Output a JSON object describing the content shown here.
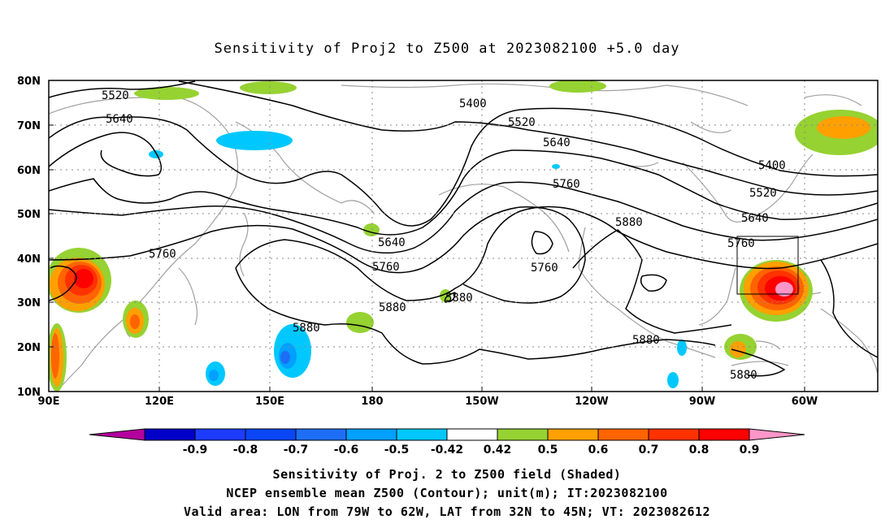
{
  "title": "Sensitivity of Proj2 to Z500 at 2023082100 +5.0 day",
  "lat_labels": [
    "80N",
    "70N",
    "60N",
    "50N",
    "40N",
    "30N",
    "20N",
    "10N"
  ],
  "lon_labels": [
    "90E",
    "120E",
    "150E",
    "180",
    "150W",
    "120W",
    "90W",
    "60W"
  ],
  "contour_labels": [
    "5520",
    "5640",
    "5400",
    "5520",
    "5640",
    "5760",
    "5880",
    "5400",
    "5520",
    "5640",
    "5760",
    "5640",
    "5760",
    "5760",
    "5880",
    "5880",
    "5880",
    "5880",
    "5760",
    "5880"
  ],
  "colorbar": {
    "labels": [
      "-0.9",
      "-0.8",
      "-0.7",
      "-0.6",
      "-0.5",
      "-0.42",
      "0.42",
      "0.5",
      "0.6",
      "0.7",
      "0.8",
      "0.9"
    ],
    "colors": [
      "#b4009e",
      "#0000c8",
      "#1e3cff",
      "#0a46f5",
      "#1e6ef5",
      "#00a0ff",
      "#00c8ff",
      "#ffffff",
      "#96d232",
      "#ffa000",
      "#ff6400",
      "#ff3200",
      "#ff0000",
      "#ff96c8"
    ]
  },
  "valid_box": {
    "lon_from": "79W",
    "lon_to": "62W",
    "lat_from": "32N",
    "lat_to": "45N"
  },
  "captions": {
    "line1": "Sensitivity of Proj. 2 to Z500 field (Shaded)",
    "line2": "NCEP ensemble mean Z500 (Contour); unit(m); IT:2023082100",
    "line3": "Valid area: LON from 79W to 62W, LAT from 32N to 45N; VT: 2023082612"
  }
}
